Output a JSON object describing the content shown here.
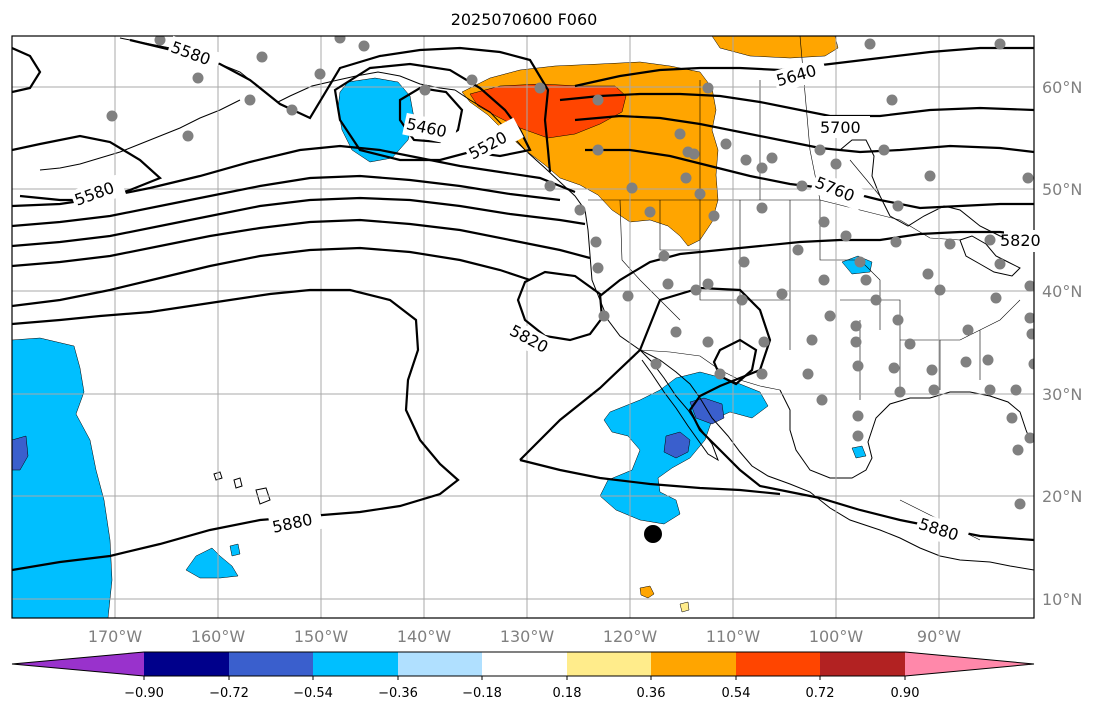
{
  "title": "2025070600 F060",
  "colors": {
    "neg_090": "#9932cc",
    "neg_072": "#00008b",
    "neg_054": "#3a5fcd",
    "neg_036": "#00bfff",
    "neg_018": "#b0e0ff",
    "neutral": "#ffffff",
    "pos_018": "#ffec8b",
    "pos_036": "#ffa500",
    "pos_054": "#ff4500",
    "pos_072": "#b22222",
    "pos_090": "#ff88aa",
    "grid": "#a8a8a8",
    "station": "#808080",
    "marker": "#000000"
  },
  "longitude_labels": [
    "170°W",
    "160°W",
    "150°W",
    "140°W",
    "130°W",
    "120°W",
    "110°W",
    "100°W",
    "90°W"
  ],
  "latitude_labels": [
    "60°N",
    "50°N",
    "40°N",
    "30°N",
    "20°N",
    "10°N"
  ],
  "contour_labels": [
    "5580",
    "5460",
    "5520",
    "5640",
    "5700",
    "5580",
    "5760",
    "5820",
    "5820",
    "5880",
    "5880",
    "5820"
  ],
  "colorbar": {
    "ticks": [
      "−0.90",
      "−0.72",
      "−0.54",
      "−0.36",
      "−0.18",
      "0.18",
      "0.36",
      "0.54",
      "0.72",
      "0.90"
    ]
  }
}
